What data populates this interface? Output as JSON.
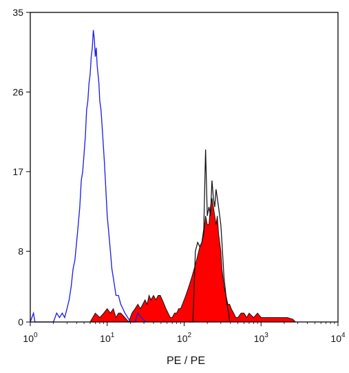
{
  "chart_data": {
    "type": "area",
    "xlabel": "PE / PE",
    "ylabel": "",
    "title": "",
    "x_scale": "log",
    "xlim": [
      1,
      10000
    ],
    "ylim": [
      0,
      35
    ],
    "grid": false,
    "y_ticks": [
      {
        "value": 0,
        "label": "0"
      },
      {
        "value": 8,
        "label": "8"
      },
      {
        "value": 17,
        "label": "17"
      },
      {
        "value": 26,
        "label": "26"
      },
      {
        "value": 35,
        "label": "35"
      }
    ],
    "x_ticks": [
      {
        "value": 1,
        "base": "10",
        "exp": "0"
      },
      {
        "value": 10,
        "base": "10",
        "exp": "1"
      },
      {
        "value": 100,
        "base": "10",
        "exp": "2"
      },
      {
        "value": 1000,
        "base": "10",
        "exp": "3"
      },
      {
        "value": 10000,
        "base": "10",
        "exp": "4"
      }
    ],
    "series": [
      {
        "style": "outline",
        "color": "#1f1fe6",
        "points": [
          [
            1.0,
            0
          ],
          [
            1.1,
            1
          ],
          [
            1.15,
            0
          ],
          [
            2.0,
            0
          ],
          [
            2.2,
            1
          ],
          [
            2.4,
            0.5
          ],
          [
            2.6,
            1
          ],
          [
            2.8,
            0.5
          ],
          [
            3.0,
            1.5
          ],
          [
            3.2,
            2.5
          ],
          [
            3.4,
            4
          ],
          [
            3.6,
            6
          ],
          [
            3.8,
            7
          ],
          [
            4.0,
            9
          ],
          [
            4.2,
            11
          ],
          [
            4.4,
            13
          ],
          [
            4.6,
            16
          ],
          [
            4.8,
            17
          ],
          [
            5.0,
            19
          ],
          [
            5.2,
            21
          ],
          [
            5.4,
            24
          ],
          [
            5.6,
            25
          ],
          [
            5.8,
            27
          ],
          [
            6.0,
            28
          ],
          [
            6.2,
            30
          ],
          [
            6.4,
            31
          ],
          [
            6.6,
            33
          ],
          [
            6.8,
            32
          ],
          [
            7.0,
            30
          ],
          [
            7.2,
            31
          ],
          [
            7.4,
            29
          ],
          [
            7.6,
            28
          ],
          [
            7.8,
            27
          ],
          [
            8.0,
            25
          ],
          [
            8.3,
            24
          ],
          [
            8.6,
            22
          ],
          [
            8.9,
            20
          ],
          [
            9.2,
            18
          ],
          [
            9.6,
            15
          ],
          [
            10.0,
            12
          ],
          [
            10.5,
            10
          ],
          [
            11.0,
            8
          ],
          [
            11.5,
            6
          ],
          [
            12.0,
            5
          ],
          [
            12.5,
            4
          ],
          [
            13.0,
            3
          ],
          [
            14.0,
            3
          ],
          [
            15.0,
            2
          ],
          [
            16.0,
            1.5
          ],
          [
            17.0,
            1
          ],
          [
            18.5,
            0.5
          ],
          [
            20.0,
            0
          ],
          [
            23.0,
            0
          ],
          [
            25.0,
            1
          ],
          [
            28.0,
            0.5
          ],
          [
            32.0,
            0
          ]
        ]
      },
      {
        "style": "filled",
        "color": "#ff0000",
        "points": [
          [
            6.0,
            0
          ],
          [
            7.0,
            1
          ],
          [
            8.0,
            0.5
          ],
          [
            9.0,
            1
          ],
          [
            10.0,
            1.5
          ],
          [
            11.0,
            1
          ],
          [
            12.0,
            1.5
          ],
          [
            13.0,
            0.5
          ],
          [
            14.0,
            1
          ],
          [
            15.0,
            1
          ],
          [
            17.0,
            0.5
          ],
          [
            19.0,
            0
          ],
          [
            21.0,
            1
          ],
          [
            23.0,
            1.5
          ],
          [
            25.0,
            2
          ],
          [
            27.0,
            1.5
          ],
          [
            29.0,
            2
          ],
          [
            31.0,
            2.5
          ],
          [
            33.0,
            2
          ],
          [
            35.0,
            3
          ],
          [
            37.0,
            2.5
          ],
          [
            40.0,
            3
          ],
          [
            43.0,
            2.5
          ],
          [
            46.0,
            3
          ],
          [
            49.0,
            3
          ],
          [
            52.0,
            2.5
          ],
          [
            55.0,
            2
          ],
          [
            58.0,
            1.5
          ],
          [
            62.0,
            1
          ],
          [
            66.0,
            0.5
          ],
          [
            70.0,
            0.5
          ],
          [
            75.0,
            1
          ],
          [
            80.0,
            1
          ],
          [
            85.0,
            1.5
          ],
          [
            90.0,
            1.5
          ],
          [
            95.0,
            2
          ],
          [
            100.0,
            2.5
          ],
          [
            105.0,
            3
          ],
          [
            110.0,
            3.5
          ],
          [
            115.0,
            4
          ],
          [
            120.0,
            4.5
          ],
          [
            125.0,
            5
          ],
          [
            130.0,
            5.5
          ],
          [
            135.0,
            6
          ],
          [
            140.0,
            6.5
          ],
          [
            145.0,
            7
          ],
          [
            150.0,
            7.5
          ],
          [
            155.0,
            8
          ],
          [
            160.0,
            8.5
          ],
          [
            170.0,
            9
          ],
          [
            180.0,
            10
          ],
          [
            190.0,
            12
          ],
          [
            200.0,
            11
          ],
          [
            210.0,
            11
          ],
          [
            220.0,
            13
          ],
          [
            230.0,
            14
          ],
          [
            240.0,
            13
          ],
          [
            250.0,
            12
          ],
          [
            260.0,
            11
          ],
          [
            270.0,
            12
          ],
          [
            280.0,
            10
          ],
          [
            290.0,
            9
          ],
          [
            300.0,
            8
          ],
          [
            310.0,
            6
          ],
          [
            320.0,
            5
          ],
          [
            330.0,
            4
          ],
          [
            350.0,
            3
          ],
          [
            370.0,
            2
          ],
          [
            390.0,
            2
          ],
          [
            410.0,
            1.5
          ],
          [
            440.0,
            1
          ],
          [
            470.0,
            0.5
          ],
          [
            500.0,
            0.5
          ],
          [
            550.0,
            1
          ],
          [
            600.0,
            1
          ],
          [
            650.0,
            0.5
          ],
          [
            700.0,
            1
          ],
          [
            800.0,
            0.5
          ],
          [
            900.0,
            1
          ],
          [
            1000.0,
            0.5
          ],
          [
            1100.0,
            0.5
          ],
          [
            1300.0,
            0.5
          ],
          [
            1500.0,
            0.5
          ],
          [
            1800.0,
            0.5
          ],
          [
            2200.0,
            0.5
          ],
          [
            2600.0,
            0.3
          ],
          [
            2800.0,
            0
          ]
        ]
      }
    ],
    "overlays": [
      {
        "name": "black-spike-outline",
        "color": "#111111",
        "points": [
          [
            120.0,
            0
          ],
          [
            130.0,
            0
          ],
          [
            140.0,
            8
          ],
          [
            150.0,
            9
          ],
          [
            160.0,
            8.5
          ],
          [
            170.0,
            9
          ],
          [
            180.0,
            10.5
          ],
          [
            190.0,
            19.5
          ],
          [
            200.0,
            12
          ],
          [
            210.0,
            13
          ],
          [
            220.0,
            12
          ],
          [
            230.0,
            16
          ],
          [
            240.0,
            14
          ],
          [
            250.0,
            13
          ],
          [
            260.0,
            15
          ],
          [
            270.0,
            14
          ],
          [
            280.0,
            13
          ],
          [
            290.0,
            12
          ],
          [
            300.0,
            11
          ],
          [
            310.0,
            9
          ],
          [
            320.0,
            7
          ],
          [
            330.0,
            5
          ],
          [
            340.0,
            4
          ],
          [
            350.0,
            3
          ],
          [
            360.0,
            2
          ],
          [
            370.0,
            1.5
          ],
          [
            380.0,
            1
          ],
          [
            390.0,
            0
          ]
        ]
      }
    ]
  }
}
